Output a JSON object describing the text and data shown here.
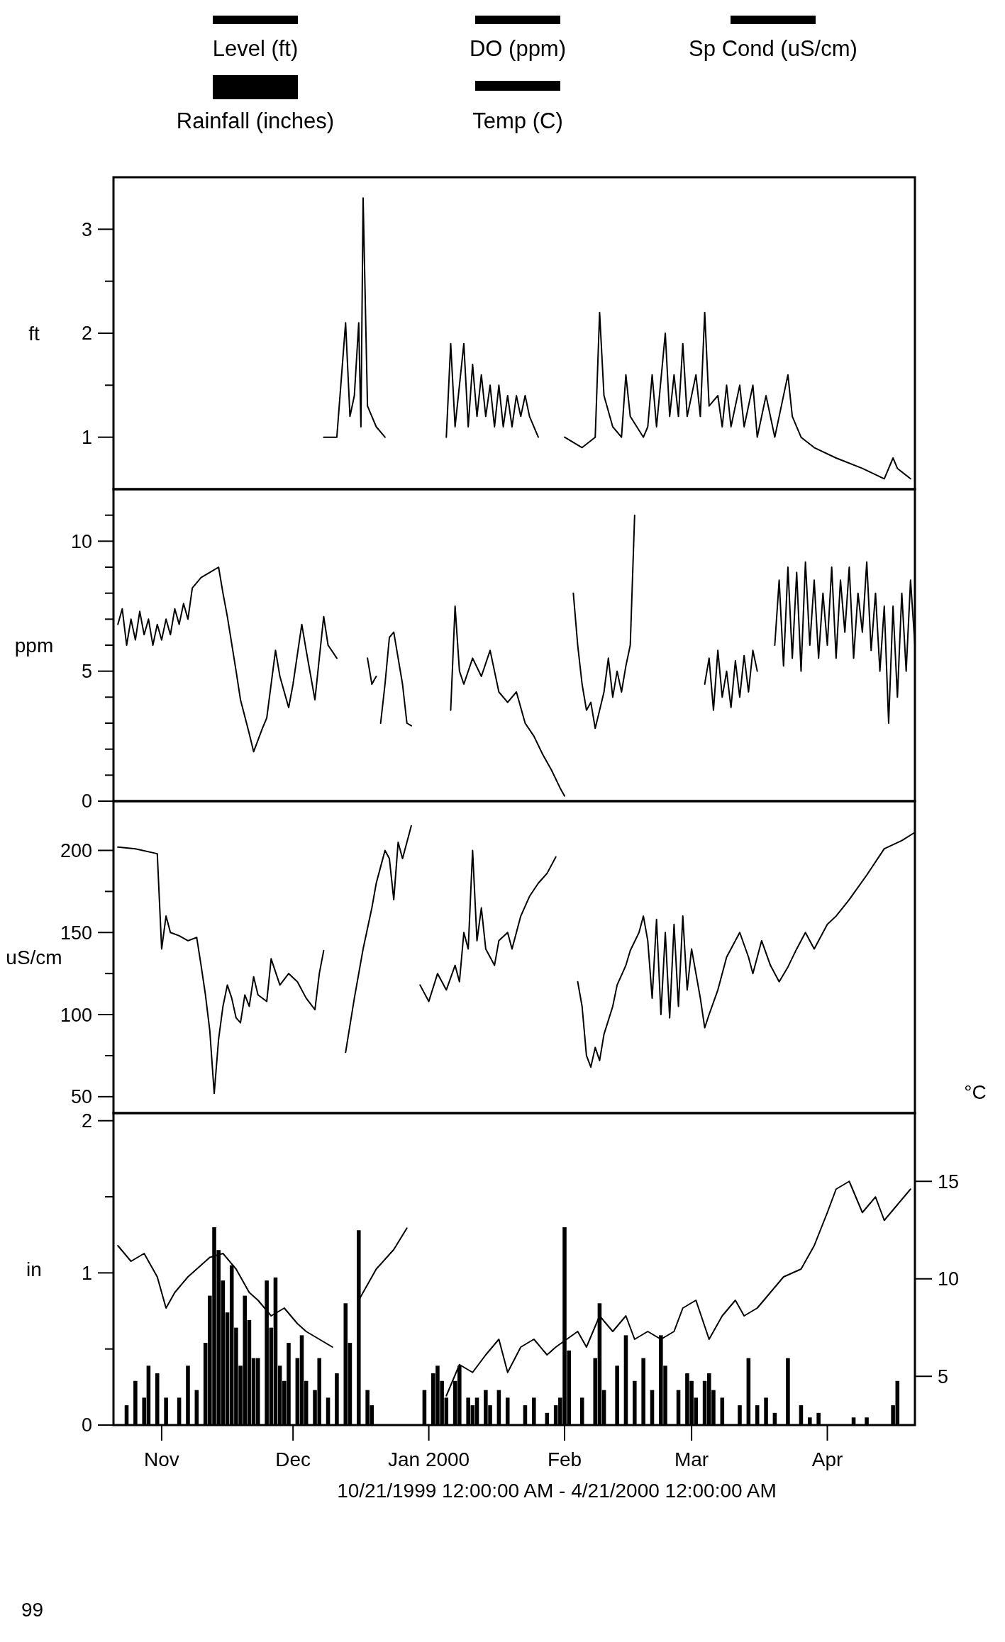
{
  "chart_data": [
    {
      "type": "line",
      "ylabel": "ft",
      "xlim": [
        "1999-10-21",
        "2000-04-21"
      ],
      "ylim": [
        0.5,
        3.5
      ],
      "yticks": [
        1,
        {
          "value": 1.5,
          "label": null
        },
        2,
        {
          "value": 2.5,
          "label": null
        },
        3
      ],
      "tick_labels": "y",
      "legend": "top",
      "series": [
        {
          "name": "Level (ft)",
          "color": "#000000",
          "x": [
            "1999-12-08",
            "1999-12-11",
            "1999-12-13",
            "1999-12-14",
            "1999-12-15",
            "1999-12-16",
            "1999-12-16T12:00",
            "1999-12-17",
            "1999-12-18",
            "1999-12-19",
            "1999-12-20",
            "1999-12-22",
            "1999-12-29",
            "2000-01-05",
            "2000-01-06",
            "2000-01-07",
            "2000-01-09",
            "2000-01-10",
            "2000-01-11",
            "2000-01-12",
            "2000-01-13",
            "2000-01-14",
            "2000-01-15",
            "2000-01-16",
            "2000-01-17",
            "2000-01-18",
            "2000-01-19",
            "2000-01-20",
            "2000-01-21",
            "2000-01-22",
            "2000-01-23",
            "2000-01-24",
            "2000-01-26",
            "2000-01-29",
            "2000-02-01",
            "2000-02-05",
            "2000-02-08",
            "2000-02-09",
            "2000-02-10",
            "2000-02-12",
            "2000-02-14",
            "2000-02-15",
            "2000-02-16",
            "2000-02-19",
            "2000-02-20",
            "2000-02-21",
            "2000-02-22",
            "2000-02-24",
            "2000-02-25",
            "2000-02-26",
            "2000-02-27",
            "2000-02-28",
            "2000-02-29",
            "2000-03-02",
            "2000-03-03",
            "2000-03-04",
            "2000-03-05",
            "2000-03-07",
            "2000-03-08",
            "2000-03-09",
            "2000-03-10",
            "2000-03-12",
            "2000-03-13",
            "2000-03-15",
            "2000-03-16",
            "2000-03-18",
            "2000-03-20",
            "2000-03-23",
            "2000-03-24",
            "2000-03-26",
            "2000-03-29",
            "2000-04-03",
            "2000-04-09",
            "2000-04-14",
            "2000-04-16",
            "2000-04-17",
            "2000-04-20"
          ],
          "values": [
            1.0,
            1.0,
            2.1,
            1.2,
            1.4,
            2.1,
            1.1,
            3.3,
            1.3,
            1.2,
            1.1,
            1.0,
            null,
            1.0,
            1.9,
            1.1,
            1.9,
            1.1,
            1.7,
            1.2,
            1.6,
            1.2,
            1.5,
            1.1,
            1.5,
            1.1,
            1.4,
            1.1,
            1.4,
            1.2,
            1.4,
            1.2,
            1.0,
            null,
            1.0,
            0.9,
            1.0,
            2.2,
            1.4,
            1.1,
            1.0,
            1.6,
            1.2,
            1.0,
            1.1,
            1.6,
            1.1,
            2.0,
            1.2,
            1.6,
            1.2,
            1.9,
            1.2,
            1.6,
            1.2,
            2.2,
            1.3,
            1.4,
            1.1,
            1.5,
            1.1,
            1.5,
            1.1,
            1.5,
            1.0,
            1.4,
            1.0,
            1.6,
            1.2,
            1.0,
            0.9,
            0.8,
            0.7,
            0.6,
            0.8,
            0.7,
            0.6
          ]
        }
      ]
    },
    {
      "type": "line",
      "ylabel": "ppm",
      "xlim": [
        "1999-10-21",
        "2000-04-21"
      ],
      "ylim": [
        0,
        12
      ],
      "yticks": [
        0,
        {
          "value": 1,
          "label": null
        },
        {
          "value": 2,
          "label": null
        },
        {
          "value": 3,
          "label": null
        },
        {
          "value": 4,
          "label": null
        },
        5,
        {
          "value": 6,
          "label": null
        },
        {
          "value": 7,
          "label": null
        },
        {
          "value": 8,
          "label": null
        },
        {
          "value": 9,
          "label": null
        },
        10,
        {
          "value": 11,
          "label": null
        }
      ],
      "tick_labels": "y",
      "legend": "top",
      "series": [
        {
          "name": "DO (ppm)",
          "color": "#000000",
          "x": [
            "1999-10-22",
            "1999-10-23",
            "1999-10-24",
            "1999-10-25",
            "1999-10-26",
            "1999-10-27",
            "1999-10-28",
            "1999-10-29",
            "1999-10-30",
            "1999-10-31",
            "1999-11-01",
            "1999-11-02",
            "1999-11-03",
            "1999-11-04",
            "1999-11-05",
            "1999-11-06",
            "1999-11-07",
            "1999-11-08",
            "1999-11-10",
            "1999-11-12",
            "1999-11-14",
            "1999-11-15",
            "1999-11-16",
            "1999-11-18",
            "1999-11-19",
            "1999-11-21",
            "1999-11-22",
            "1999-11-24",
            "1999-11-25",
            "1999-11-27",
            "1999-11-28",
            "1999-11-30",
            "1999-12-01",
            "1999-12-03",
            "1999-12-04",
            "1999-12-06",
            "1999-12-08",
            "1999-12-09",
            "1999-12-11",
            "1999-12-14",
            "1999-12-18",
            "1999-12-19",
            "1999-12-20",
            "1999-12-20T12:00",
            "1999-12-21",
            "1999-12-22",
            "1999-12-23",
            "1999-12-24",
            "1999-12-25",
            "1999-12-26",
            "1999-12-27",
            "1999-12-28",
            "2000-01-01",
            "2000-01-06",
            "2000-01-07",
            "2000-01-08",
            "2000-01-09",
            "2000-01-11",
            "2000-01-13",
            "2000-01-15",
            "2000-01-17",
            "2000-01-19",
            "2000-01-21",
            "2000-01-23",
            "2000-01-25",
            "2000-01-27",
            "2000-01-29",
            "2000-01-31",
            "2000-02-01",
            "2000-02-02",
            "2000-02-03",
            "2000-02-04",
            "2000-02-05",
            "2000-02-06",
            "2000-02-07",
            "2000-02-08",
            "2000-02-09",
            "2000-02-10",
            "2000-02-11",
            "2000-02-12",
            "2000-02-13",
            "2000-02-14",
            "2000-02-15",
            "2000-02-16",
            "2000-02-17",
            "2000-02-23",
            "2000-03-04",
            "2000-03-05",
            "2000-03-06",
            "2000-03-07",
            "2000-03-08",
            "2000-03-09",
            "2000-03-10",
            "2000-03-11",
            "2000-03-12",
            "2000-03-13",
            "2000-03-14",
            "2000-03-15",
            "2000-03-16",
            "2000-03-18",
            "2000-03-20",
            "2000-03-21",
            "2000-03-22",
            "2000-03-23",
            "2000-03-24",
            "2000-03-25",
            "2000-03-26",
            "2000-03-27",
            "2000-03-28",
            "2000-03-29",
            "2000-03-30",
            "2000-03-31",
            "2000-04-01",
            "2000-04-02",
            "2000-04-03",
            "2000-04-04",
            "2000-04-05",
            "2000-04-06",
            "2000-04-07",
            "2000-04-08",
            "2000-04-09",
            "2000-04-10",
            "2000-04-11",
            "2000-04-12",
            "2000-04-13",
            "2000-04-14",
            "2000-04-15",
            "2000-04-16",
            "2000-04-17",
            "2000-04-18",
            "2000-04-19",
            "2000-04-20",
            "2000-04-21"
          ],
          "values": [
            6.8,
            7.4,
            6.0,
            7.0,
            6.2,
            7.3,
            6.4,
            7.0,
            6.0,
            6.8,
            6.2,
            7.0,
            6.4,
            7.4,
            6.8,
            7.6,
            7.0,
            8.2,
            8.6,
            8.8,
            9.0,
            8.0,
            7.1,
            5.0,
            3.9,
            2.6,
            1.9,
            2.8,
            3.2,
            5.8,
            4.8,
            3.6,
            4.5,
            6.8,
            5.8,
            3.9,
            7.1,
            6.0,
            5.5,
            null,
            5.5,
            4.5,
            4.8,
            null,
            3.0,
            4.5,
            6.3,
            6.5,
            5.5,
            4.5,
            3.0,
            2.9,
            null,
            3.5,
            7.5,
            5.0,
            4.5,
            5.5,
            4.8,
            5.8,
            4.2,
            3.8,
            4.2,
            3.0,
            2.5,
            1.8,
            1.2,
            0.5,
            0.2,
            null,
            8.0,
            6.0,
            4.5,
            3.5,
            3.8,
            2.8,
            3.5,
            4.2,
            5.5,
            4.0,
            5.0,
            4.2,
            5.2,
            6.0,
            11.0,
            null,
            4.5,
            5.5,
            3.5,
            5.8,
            4.0,
            5.0,
            3.6,
            5.4,
            4.0,
            5.6,
            4.2,
            5.8,
            5.0,
            null,
            6.0,
            8.5,
            5.2,
            9.0,
            5.5,
            8.8,
            5.0,
            9.2,
            6.0,
            8.5,
            5.5,
            8.0,
            6.0,
            9.0,
            5.5,
            8.5,
            6.5,
            9.0,
            5.5,
            8.0,
            6.5,
            9.2,
            5.8,
            8.0,
            5.0,
            7.5,
            3.0,
            7.5,
            4.0,
            8.0,
            5.0,
            8.5,
            6.0
          ]
        }
      ]
    },
    {
      "type": "line",
      "ylabel": "uS/cm",
      "xlim": [
        "1999-10-21",
        "2000-04-21"
      ],
      "ylim": [
        40,
        230
      ],
      "yticks": [
        50,
        {
          "value": 75,
          "label": null
        },
        100,
        {
          "value": 125,
          "label": null
        },
        150,
        {
          "value": 175,
          "label": null
        },
        200
      ],
      "tick_labels": "y",
      "legend": "top",
      "series": [
        {
          "name": "Sp Cond (uS/cm)",
          "color": "#000000",
          "x": [
            "1999-10-22",
            "1999-10-26",
            "1999-10-31",
            "1999-11-01",
            "1999-11-02",
            "1999-11-03",
            "1999-11-05",
            "1999-11-07",
            "1999-11-09",
            "1999-11-10",
            "1999-11-11",
            "1999-11-12",
            "1999-11-13",
            "1999-11-14",
            "1999-11-15",
            "1999-11-16",
            "1999-11-17",
            "1999-11-18",
            "1999-11-19",
            "1999-11-20",
            "1999-11-21",
            "1999-11-22",
            "1999-11-23",
            "1999-11-25",
            "1999-11-26",
            "1999-11-28",
            "1999-11-30",
            "1999-12-02",
            "1999-12-04",
            "1999-12-06",
            "1999-12-07",
            "1999-12-08",
            "1999-12-10",
            "1999-12-13",
            "1999-12-15",
            "1999-12-17",
            "1999-12-19",
            "1999-12-20",
            "1999-12-21",
            "1999-12-22",
            "1999-12-23",
            "1999-12-24",
            "1999-12-25",
            "1999-12-26",
            "1999-12-27",
            "1999-12-28",
            "1999-12-29",
            "1999-12-30",
            "2000-01-01",
            "2000-01-03",
            "2000-01-05",
            "2000-01-07",
            "2000-01-08",
            "2000-01-09",
            "2000-01-10",
            "2000-01-11",
            "2000-01-12",
            "2000-01-13",
            "2000-01-14",
            "2000-01-16",
            "2000-01-17",
            "2000-01-19",
            "2000-01-20",
            "2000-01-22",
            "2000-01-24",
            "2000-01-26",
            "2000-01-28",
            "2000-01-30",
            "2000-02-01",
            "2000-02-04",
            "2000-02-05",
            "2000-02-06",
            "2000-02-07",
            "2000-02-08",
            "2000-02-09",
            "2000-02-10",
            "2000-02-12",
            "2000-02-13",
            "2000-02-15",
            "2000-02-16",
            "2000-02-18",
            "2000-02-19",
            "2000-02-20",
            "2000-02-21",
            "2000-02-22",
            "2000-02-23",
            "2000-02-24",
            "2000-02-25",
            "2000-02-26",
            "2000-02-27",
            "2000-02-28",
            "2000-02-29",
            "2000-03-01",
            "2000-03-03",
            "2000-03-04",
            "2000-03-05",
            "2000-03-07",
            "2000-03-09",
            "2000-03-12",
            "2000-03-14",
            "2000-03-15",
            "2000-03-17",
            "2000-03-19",
            "2000-03-21",
            "2000-03-23",
            "2000-03-25",
            "2000-03-27",
            "2000-03-29",
            "2000-04-01",
            "2000-04-03",
            "2000-04-06",
            "2000-04-10",
            "2000-04-14",
            "2000-04-18",
            "2000-04-21"
          ],
          "values": [
            202,
            201,
            198,
            140,
            160,
            150,
            148,
            145,
            147,
            130,
            112,
            90,
            52,
            85,
            105,
            118,
            110,
            98,
            95,
            112,
            105,
            123,
            112,
            108,
            134,
            118,
            125,
            120,
            110,
            103,
            125,
            139,
            null,
            77,
            110,
            140,
            165,
            180,
            190,
            200,
            195,
            170,
            205,
            195,
            205,
            215,
            null,
            118,
            108,
            125,
            115,
            130,
            120,
            150,
            140,
            200,
            145,
            165,
            140,
            130,
            145,
            150,
            140,
            160,
            172,
            180,
            186,
            196,
            null,
            120,
            105,
            75,
            68,
            80,
            72,
            88,
            105,
            118,
            130,
            139,
            150,
            160,
            145,
            110,
            158,
            100,
            150,
            98,
            155,
            105,
            160,
            115,
            140,
            110,
            92,
            100,
            115,
            135,
            150,
            135,
            125,
            145,
            130,
            120,
            129,
            140,
            150,
            140,
            155,
            160,
            170,
            185,
            201,
            206,
            211
          ]
        }
      ]
    },
    {
      "type": "bar",
      "ylabel": "in",
      "y2label": "°C",
      "xlim": [
        "1999-10-21",
        "2000-04-21"
      ],
      "ylim": [
        0,
        2.05
      ],
      "yticks": [
        0,
        {
          "value": 0.5,
          "label": null
        },
        1,
        {
          "value": 1.5,
          "label": null
        },
        2
      ],
      "y2lim": [
        2.5,
        18.5
      ],
      "y2ticks": [
        5,
        10,
        15
      ],
      "xticks": [
        {
          "value": "1999-11-01",
          "label": "Nov"
        },
        {
          "value": "1999-12-01",
          "label": "Dec"
        },
        {
          "value": "2000-01-01",
          "label": "Jan 2000"
        },
        {
          "value": "2000-02-01",
          "label": "Feb"
        },
        {
          "value": "2000-03-01",
          "label": "Mar"
        },
        {
          "value": "2000-04-01",
          "label": "Apr"
        }
      ],
      "xlabel": "10/21/1999 12:00:00 AM - 4/21/2000 12:00:00 AM",
      "legend": "top",
      "annotations": [
        "99"
      ],
      "series": [
        {
          "name": "Rainfall (inches)",
          "color": "#000000",
          "x": [
            "1999-10-24",
            "1999-10-26",
            "1999-10-28",
            "1999-10-29",
            "1999-10-31",
            "1999-11-02",
            "1999-11-05",
            "1999-11-07",
            "1999-11-09",
            "1999-11-11",
            "1999-11-12",
            "1999-11-13",
            "1999-11-14",
            "1999-11-15",
            "1999-11-16",
            "1999-11-17",
            "1999-11-18",
            "1999-11-19",
            "1999-11-20",
            "1999-11-21",
            "1999-11-22",
            "1999-11-23",
            "1999-11-25",
            "1999-11-26",
            "1999-11-27",
            "1999-11-28",
            "1999-11-29",
            "1999-11-30",
            "1999-12-02",
            "1999-12-03",
            "1999-12-04",
            "1999-12-06",
            "1999-12-07",
            "1999-12-09",
            "1999-12-11",
            "1999-12-13",
            "1999-12-14",
            "1999-12-16",
            "1999-12-18",
            "1999-12-19",
            "1999-12-31",
            "2000-01-02",
            "2000-01-03",
            "2000-01-04",
            "2000-01-05",
            "2000-01-07",
            "2000-01-08",
            "2000-01-10",
            "2000-01-11",
            "2000-01-12",
            "2000-01-14",
            "2000-01-15",
            "2000-01-17",
            "2000-01-19",
            "2000-01-23",
            "2000-01-25",
            "2000-01-28",
            "2000-01-30",
            "2000-01-31",
            "2000-02-01",
            "2000-02-02",
            "2000-02-05",
            "2000-02-08",
            "2000-02-09",
            "2000-02-10",
            "2000-02-13",
            "2000-02-15",
            "2000-02-17",
            "2000-02-19",
            "2000-02-21",
            "2000-02-23",
            "2000-02-24",
            "2000-02-27",
            "2000-02-29",
            "2000-03-01",
            "2000-03-02",
            "2000-03-04",
            "2000-03-05",
            "2000-03-06",
            "2000-03-08",
            "2000-03-12",
            "2000-03-14",
            "2000-03-16",
            "2000-03-18",
            "2000-03-20",
            "2000-03-23",
            "2000-03-26",
            "2000-03-28",
            "2000-03-30",
            "2000-04-07",
            "2000-04-10",
            "2000-04-16",
            "2000-04-17"
          ],
          "values": [
            0.13,
            0.29,
            0.18,
            0.39,
            0.34,
            0.18,
            0.18,
            0.39,
            0.23,
            0.54,
            0.85,
            1.3,
            1.15,
            0.95,
            0.74,
            1.05,
            0.64,
            0.39,
            0.85,
            0.69,
            0.44,
            0.44,
            0.95,
            0.64,
            0.97,
            0.39,
            0.29,
            0.54,
            0.44,
            0.59,
            0.29,
            0.23,
            0.44,
            0.18,
            0.34,
            0.8,
            0.54,
            1.28,
            0.23,
            0.13,
            0.23,
            0.34,
            0.39,
            0.29,
            0.18,
            0.29,
            0.39,
            0.18,
            0.13,
            0.18,
            0.23,
            0.13,
            0.23,
            0.18,
            0.13,
            0.18,
            0.08,
            0.13,
            0.18,
            1.3,
            0.49,
            0.18,
            0.44,
            0.8,
            0.23,
            0.39,
            0.59,
            0.29,
            0.44,
            0.23,
            0.59,
            0.39,
            0.23,
            0.34,
            0.29,
            0.18,
            0.29,
            0.34,
            0.23,
            0.18,
            0.13,
            0.44,
            0.13,
            0.18,
            0.08,
            0.44,
            0.13,
            0.05,
            0.08,
            0.05,
            0.05,
            0.13,
            0.29
          ]
        },
        {
          "name": "Temp (C)",
          "type": "line",
          "axis": "y2",
          "color": "#000000",
          "x": [
            "1999-10-22",
            "1999-10-25",
            "1999-10-28",
            "1999-10-31",
            "1999-11-02",
            "1999-11-04",
            "1999-11-07",
            "1999-11-09",
            "1999-11-12",
            "1999-11-15",
            "1999-11-18",
            "1999-11-21",
            "1999-11-23",
            "1999-11-26",
            "1999-11-29",
            "1999-12-02",
            "1999-12-04",
            "1999-12-07",
            "1999-12-10",
            "1999-12-12",
            "1999-12-16",
            "1999-12-20",
            "1999-12-24",
            "1999-12-27",
            "1999-12-29",
            "2000-01-05",
            "2000-01-08",
            "2000-01-11",
            "2000-01-14",
            "2000-01-17",
            "2000-01-19",
            "2000-01-22",
            "2000-01-25",
            "2000-01-28",
            "2000-01-30",
            "2000-02-04",
            "2000-02-06",
            "2000-02-09",
            "2000-02-12",
            "2000-02-15",
            "2000-02-17",
            "2000-02-20",
            "2000-02-23",
            "2000-02-26",
            "2000-02-28",
            "2000-03-02",
            "2000-03-05",
            "2000-03-08",
            "2000-03-11",
            "2000-03-13",
            "2000-03-16",
            "2000-03-19",
            "2000-03-22",
            "2000-03-26",
            "2000-03-29",
            "2000-04-01",
            "2000-04-03",
            "2000-04-06",
            "2000-04-09",
            "2000-04-12",
            "2000-04-14",
            "2000-04-17",
            "2000-04-20"
          ],
          "values": [
            11.7,
            10.9,
            11.3,
            10.1,
            8.5,
            9.3,
            10.1,
            10.5,
            11.1,
            11.3,
            10.5,
            9.3,
            8.9,
            8.1,
            8.5,
            7.7,
            7.3,
            6.9,
            6.5,
            null,
            8.9,
            10.5,
            11.5,
            12.6,
            null,
            4.0,
            5.6,
            5.2,
            6.1,
            6.9,
            5.2,
            6.5,
            6.9,
            6.1,
            6.5,
            7.3,
            6.5,
            8.1,
            7.3,
            8.1,
            6.9,
            7.3,
            6.9,
            7.3,
            8.5,
            8.9,
            6.9,
            8.1,
            8.9,
            8.1,
            8.5,
            9.3,
            10.1,
            10.5,
            11.7,
            13.4,
            14.6,
            15.0,
            13.4,
            14.2,
            13.0,
            13.8,
            14.6
          ]
        }
      ]
    }
  ]
}
